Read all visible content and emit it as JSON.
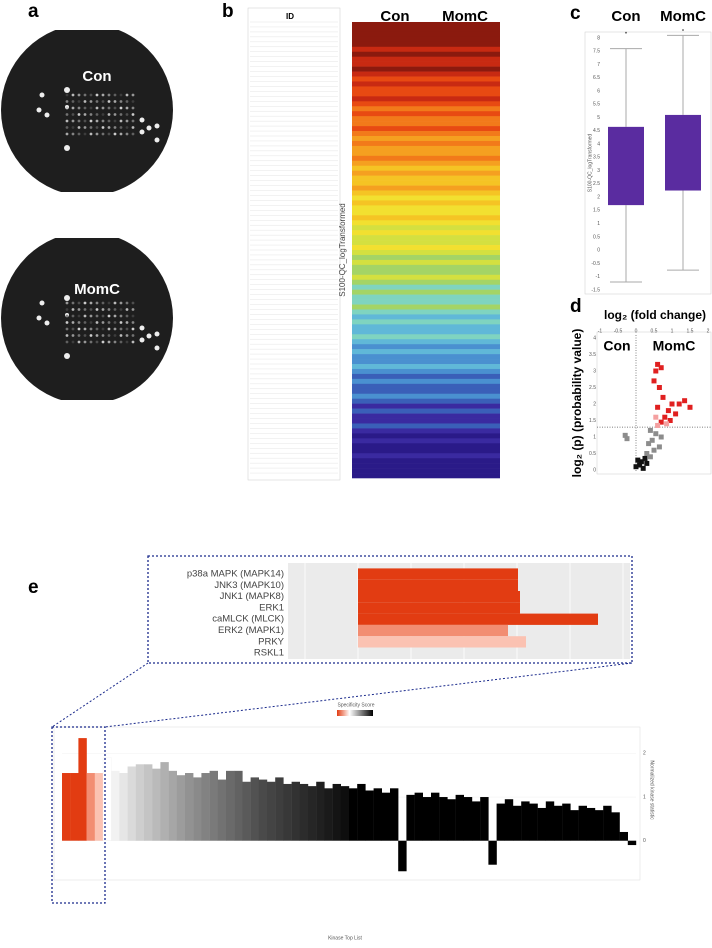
{
  "panels": {
    "a": "a",
    "b": "b",
    "c": "c",
    "d": "d",
    "e": "e"
  },
  "blots": {
    "top": "Con",
    "bottom": "MomC"
  },
  "heatmap": {
    "id_header": "ID",
    "columns": [
      "Con",
      "MomC"
    ],
    "axis_label": "S100-QC_logTransformed"
  },
  "boxplot": {
    "type": "box",
    "categories": [
      "Con",
      "MomC"
    ],
    "color": "#5a2ca0",
    "ylabel": "S100-QC_logTransformed",
    "ylim": [
      -1.5,
      8
    ],
    "yticks": [
      -1.5,
      -1,
      -0.5,
      0,
      0.5,
      1,
      1.5,
      2,
      2.5,
      3,
      3.5,
      4,
      4.5,
      5,
      5.5,
      6,
      6.5,
      7,
      7.5,
      8
    ],
    "whisker_low": [
      -1.2,
      -0.75
    ],
    "q1": [
      1.7,
      2.25
    ],
    "q3": [
      4.65,
      5.1
    ],
    "whisker_high": [
      7.6,
      8.1
    ],
    "outliers": [
      8.2,
      8.3
    ]
  },
  "volcano": {
    "type": "scatter",
    "title": "log₂ (fold change)",
    "ylabel": "log₂ (p) (probability value)",
    "regions": [
      "Con",
      "MomC"
    ],
    "xlim": [
      -1,
      2
    ],
    "xticks": [
      -1,
      -0.5,
      0,
      0.5,
      1,
      1.5,
      2
    ],
    "ylim": [
      0,
      4
    ],
    "yticks": [
      0,
      0.5,
      1,
      1.5,
      2,
      2.5,
      3,
      3.5,
      4
    ],
    "threshold": 1.3,
    "series": [
      {
        "color": "#e02020",
        "x": [
          0.55,
          0.6,
          0.5,
          0.65,
          0.7,
          1.2,
          1.35,
          1.5,
          0.9,
          1.0,
          0.75,
          1.1,
          0.8,
          0.95,
          0.6,
          0.7
        ],
        "y": [
          3.0,
          3.2,
          2.7,
          2.5,
          3.1,
          2.0,
          2.1,
          1.9,
          1.8,
          2.0,
          2.2,
          1.7,
          1.6,
          1.5,
          1.9,
          1.45
        ]
      },
      {
        "color": "#f4a0a0",
        "x": [
          0.55,
          0.85,
          0.6
        ],
        "y": [
          1.6,
          1.4,
          1.35
        ]
      },
      {
        "color": "#8c8c8c",
        "x": [
          0.4,
          0.55,
          0.45,
          0.7,
          0.35,
          0.5,
          0.3,
          0.4,
          -0.3,
          -0.25,
          0.65
        ],
        "y": [
          1.2,
          1.1,
          0.9,
          1.0,
          0.8,
          0.6,
          0.5,
          0.4,
          1.05,
          0.95,
          0.7
        ]
      },
      {
        "color": "#111111",
        "x": [
          0.1,
          0.0,
          0.2,
          0.15,
          0.3,
          0.05,
          0.25
        ],
        "y": [
          0.15,
          0.1,
          0.05,
          0.25,
          0.2,
          0.3,
          0.35
        ]
      }
    ]
  },
  "kinase_inset": {
    "type": "hbar",
    "categories": [
      "p38a MAPK (MAPK14)",
      "JNK3 (MAPK10)",
      "JNK1 (MAPK8)",
      "ERK1",
      "caMLCK (MLCK)",
      "ERK2 (MAPK1)",
      "PRKY",
      "RSKL1"
    ],
    "values": [
      160,
      160,
      162,
      162,
      240,
      150,
      168,
      0
    ],
    "colors": [
      "#e23c12",
      "#e23c12",
      "#e23c12",
      "#e23c12",
      "#e23c12",
      "#f28d72",
      "#fbc2b2",
      "#ffffff"
    ],
    "xlim": [
      0,
      272
    ]
  },
  "kinase_bars": {
    "type": "bar",
    "legend_title": "Specificity Score",
    "xlabel": "Kinase Top List",
    "ylabel": "Normalized kinase statistic",
    "ylim": [
      -0.9,
      2.65
    ],
    "yticks": [
      0,
      1,
      2
    ],
    "values": [
      1.55,
      1.55,
      2.35,
      1.55,
      1.55,
      1.9,
      1.6,
      1.55,
      1.7,
      1.75,
      1.75,
      1.65,
      1.8,
      1.6,
      1.5,
      1.55,
      1.45,
      1.55,
      1.6,
      1.4,
      1.6,
      1.6,
      1.35,
      1.45,
      1.4,
      1.35,
      1.45,
      1.3,
      1.35,
      1.3,
      1.25,
      1.35,
      1.2,
      1.3,
      1.25,
      1.2,
      1.3,
      1.15,
      1.2,
      1.1,
      1.2,
      -0.7,
      1.05,
      1.1,
      1.0,
      1.1,
      1.0,
      0.95,
      1.05,
      1.0,
      0.9,
      1.0,
      -0.55,
      0.85,
      0.95,
      0.8,
      0.9,
      0.85,
      0.75,
      0.9,
      0.8,
      0.85,
      0.7,
      0.8,
      0.75,
      0.7,
      0.8,
      0.65,
      0.2,
      -0.1
    ],
    "colors": [
      "#e23c12",
      "#e23c12",
      "#e23c12",
      "#f28d72",
      "#fbc2b2",
      "#ffffff",
      "#f2f2f2",
      "#e6e6e6",
      "#dadada",
      "#cecece",
      "#c4c4c4",
      "#bababa",
      "#b0b0b0",
      "#a6a6a6",
      "#9c9c9c",
      "#929292",
      "#8a8a8a",
      "#828282",
      "#7a7a7a",
      "#727272",
      "#6a6a6a",
      "#626262",
      "#5a5a5a",
      "#525252",
      "#4a4a4a",
      "#444444",
      "#3e3e3e",
      "#383838",
      "#323232",
      "#2c2c2c",
      "#262626",
      "#202020",
      "#1a1a1a",
      "#141414",
      "#0e0e0e",
      "#000000",
      "#000000",
      "#000000",
      "#000000",
      "#000000",
      "#000000",
      "#000000",
      "#000000",
      "#000000",
      "#000000",
      "#000000",
      "#000000",
      "#000000",
      "#000000",
      "#000000",
      "#000000",
      "#000000",
      "#000000",
      "#000000",
      "#000000",
      "#000000",
      "#000000",
      "#000000",
      "#000000",
      "#000000",
      "#000000",
      "#000000",
      "#000000",
      "#000000",
      "#000000",
      "#000000",
      "#000000",
      "#000000",
      "#000000",
      "#000000"
    ]
  }
}
